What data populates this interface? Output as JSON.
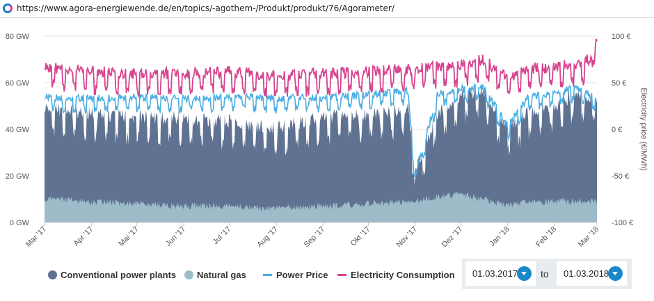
{
  "browser": {
    "url": "https://www.agora-energiewende.de/en/topics/-agothem-/Produkt/produkt/76/Agorameter/"
  },
  "chart_data": {
    "type": "area",
    "title": "",
    "ylabel_left": "",
    "ylabel_right": "Electricity price (€/MWh)",
    "ylim_left": [
      0,
      80
    ],
    "ylim_right": [
      -100,
      100
    ],
    "yticks_left": [
      "0 GW",
      "20 GW",
      "40 GW",
      "60 GW",
      "80 GW"
    ],
    "yticks_right": [
      "-100 €",
      "-50 €",
      "0 €",
      "50 €",
      "100 €"
    ],
    "x_range_days": [
      0,
      365
    ],
    "xticks": [
      {
        "label": "Mar '17",
        "day": 0
      },
      {
        "label": "Apr '17",
        "day": 31
      },
      {
        "label": "Mai '17",
        "day": 61
      },
      {
        "label": "Jun '17",
        "day": 92
      },
      {
        "label": "Jul '17",
        "day": 122
      },
      {
        "label": "Aug '17",
        "day": 153
      },
      {
        "label": "Sep '17",
        "day": 184
      },
      {
        "label": "Okt '17",
        "day": 214
      },
      {
        "label": "Nov '17",
        "day": 245
      },
      {
        "label": "Dez '17",
        "day": 275
      },
      {
        "label": "Jan '18",
        "day": 306
      },
      {
        "label": "Feb '18",
        "day": 337
      },
      {
        "label": "Mar '18",
        "day": 365
      }
    ],
    "series": [
      {
        "name": "Conventional power plants",
        "axis": "left",
        "unit": "GW",
        "color": "#5f7291",
        "x": [
          0,
          30,
          61,
          92,
          122,
          153,
          184,
          214,
          240,
          245,
          260,
          275,
          290,
          306,
          320,
          337,
          350,
          365
        ],
        "values": [
          47,
          44,
          43,
          42,
          41,
          38,
          43,
          44,
          46,
          20,
          45,
          52,
          54,
          38,
          45,
          48,
          52,
          50
        ]
      },
      {
        "name": "Natural gas",
        "axis": "left",
        "unit": "GW",
        "color": "#9dbbc9",
        "x": [
          0,
          30,
          61,
          92,
          122,
          153,
          184,
          214,
          245,
          260,
          275,
          290,
          306,
          320,
          337,
          365
        ],
        "values": [
          10,
          9,
          8,
          7,
          7,
          6,
          7,
          8,
          9,
          11,
          12,
          10,
          7,
          9,
          9,
          9
        ]
      },
      {
        "name": "Power Price",
        "axis": "right",
        "unit": "€/MWh",
        "color": "#4aaee3",
        "x": [
          0,
          30,
          61,
          92,
          122,
          153,
          184,
          214,
          240,
          245,
          260,
          275,
          290,
          306,
          320,
          337,
          350,
          365
        ],
        "values": [
          32,
          30,
          31,
          30,
          32,
          30,
          31,
          34,
          38,
          -52,
          36,
          40,
          42,
          0,
          32,
          36,
          42,
          30
        ]
      },
      {
        "name": "Electricity Consumption",
        "axis": "left",
        "unit": "GW",
        "color": "#d6448f",
        "x": [
          0,
          30,
          61,
          92,
          122,
          153,
          184,
          214,
          245,
          275,
          290,
          306,
          320,
          337,
          350,
          360,
          365
        ],
        "values": [
          65,
          63,
          62,
          62,
          63,
          61,
          62,
          63,
          64,
          66,
          68,
          60,
          64,
          65,
          66,
          68,
          78
        ]
      }
    ]
  },
  "legend": [
    {
      "label": "Conventional power plants",
      "color": "#5f7291",
      "kind": "area"
    },
    {
      "label": "Natural gas",
      "color": "#9dbbc9",
      "kind": "area"
    },
    {
      "label": "Power Price",
      "color": "#4aaee3",
      "kind": "line"
    },
    {
      "label": "Electricity Consumption",
      "color": "#d6448f",
      "kind": "line"
    }
  ],
  "date_range": {
    "from": "01.03.2017",
    "to_label": "to",
    "to": "01.03.2018"
  }
}
